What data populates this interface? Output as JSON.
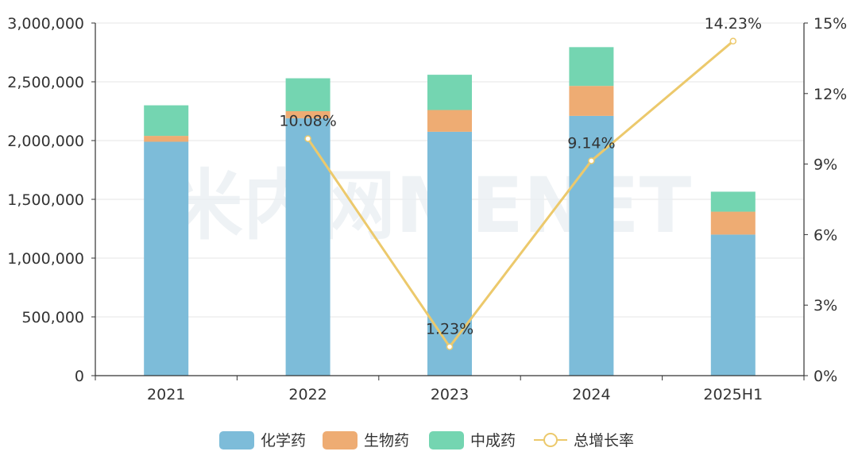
{
  "watermark": "米内网MENET",
  "chart_data": {
    "type": "bar",
    "stacked": true,
    "categories": [
      "2021",
      "2022",
      "2023",
      "2024",
      "2025H1"
    ],
    "series": [
      {
        "name": "化学药",
        "values": [
          1990000,
          2190000,
          2075000,
          2210000,
          1200000
        ],
        "color": "#7dbcd9"
      },
      {
        "name": "生物药",
        "values": [
          50000,
          60000,
          185000,
          255000,
          195000
        ],
        "color": "#eeac73"
      },
      {
        "name": "中成药",
        "values": [
          260000,
          280000,
          300000,
          330000,
          170000
        ],
        "color": "#74d5b1"
      }
    ],
    "line": {
      "name": "总增长率",
      "points": [
        {
          "category": "2022",
          "value": 10.08,
          "label": "10.08%"
        },
        {
          "category": "2023",
          "value": 1.23,
          "label": "1.23%"
        },
        {
          "category": "2024",
          "value": 9.14,
          "label": "9.14%"
        },
        {
          "category": "2025H1",
          "value": 14.23,
          "label": "14.23%"
        }
      ],
      "color": "#ecc96c"
    },
    "y_left": {
      "min": 0,
      "max": 3000000,
      "ticks": [
        "0",
        "500,000",
        "1,000,000",
        "1,500,000",
        "2,000,000",
        "2,500,000",
        "3,000,000"
      ]
    },
    "y_right": {
      "min": 0,
      "max": 15,
      "ticks": [
        "0%",
        "3%",
        "6%",
        "9%",
        "12%",
        "15%"
      ]
    },
    "grid": true,
    "legend_position": "bottom"
  }
}
